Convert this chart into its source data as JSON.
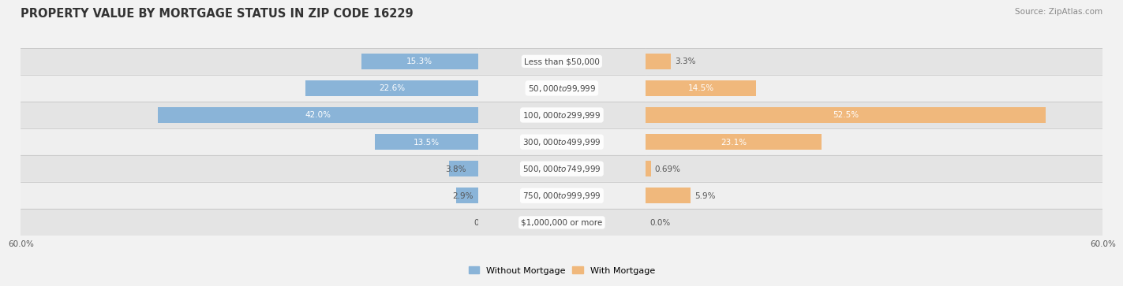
{
  "title": "PROPERTY VALUE BY MORTGAGE STATUS IN ZIP CODE 16229",
  "source": "Source: ZipAtlas.com",
  "categories": [
    "Less than $50,000",
    "$50,000 to $99,999",
    "$100,000 to $299,999",
    "$300,000 to $499,999",
    "$500,000 to $749,999",
    "$750,000 to $999,999",
    "$1,000,000 or more"
  ],
  "without_mortgage": [
    15.3,
    22.6,
    42.0,
    13.5,
    3.8,
    2.9,
    0.0
  ],
  "with_mortgage": [
    3.3,
    14.5,
    52.5,
    23.1,
    0.69,
    5.9,
    0.0
  ],
  "color_without": "#8ab4d8",
  "color_with": "#f0b87c",
  "xlim": 60.0,
  "title_fontsize": 10.5,
  "source_fontsize": 7.5,
  "label_fontsize": 7.5,
  "cat_fontsize": 7.5,
  "tick_fontsize": 7.5,
  "legend_fontsize": 8,
  "bar_height": 0.58,
  "background_color": "#f2f2f2",
  "row_colors": [
    "#e4e4e4",
    "#efefef"
  ],
  "label_color_dark": "#555555",
  "label_color_light": "#ffffff",
  "without_labels": [
    "15.3%",
    "22.6%",
    "42.0%",
    "13.5%",
    "3.8%",
    "2.9%",
    "0.0%"
  ],
  "with_labels": [
    "3.3%",
    "14.5%",
    "52.5%",
    "23.1%",
    "0.69%",
    "5.9%",
    "0.0%"
  ]
}
